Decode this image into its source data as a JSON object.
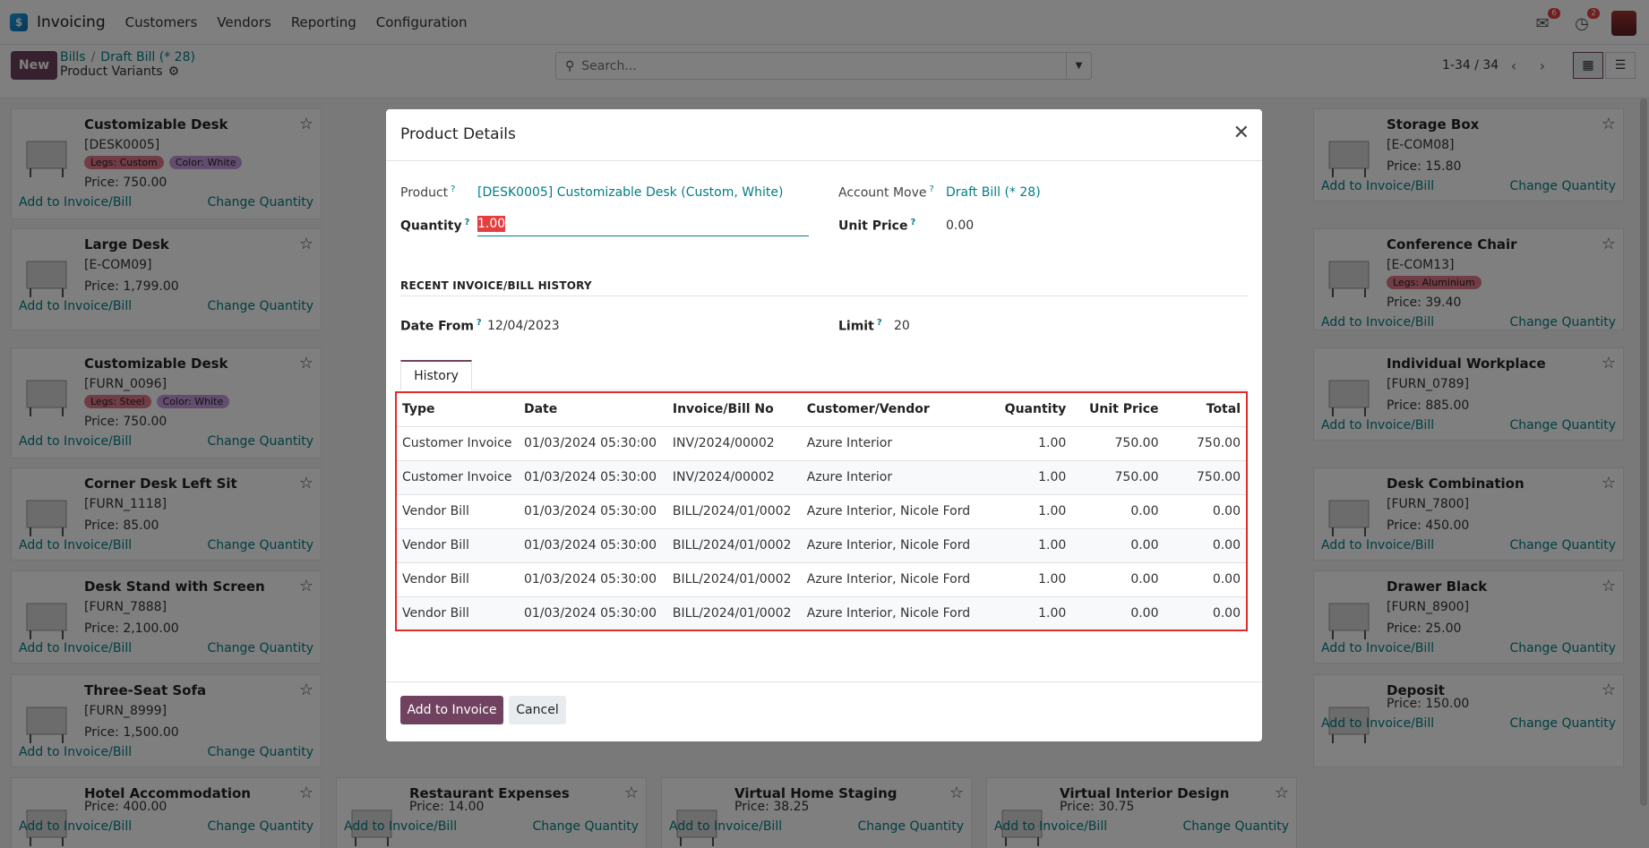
{
  "navbar": {
    "app_name": "Invoicing",
    "menu": [
      "Customers",
      "Vendors",
      "Reporting",
      "Configuration"
    ],
    "messages_count": "6",
    "activities_count": "2"
  },
  "control_panel": {
    "new_label": "New",
    "breadcrumb_bills": "Bills",
    "breadcrumb_sep": "/",
    "breadcrumb_draft": "Draft Bill (* 28)",
    "page_title": "Product Variants",
    "search_placeholder": "Search...",
    "pager": "1-34 / 34"
  },
  "kanban": {
    "add_label": "Add to Invoice/Bill",
    "change_label": "Change Quantity",
    "cards": [
      {
        "title": "Customizable Desk",
        "ref": "[DESK0005]",
        "tags": [
          "Legs: Custom",
          "Color: White"
        ],
        "price": "Price: 750.00"
      },
      {
        "title": "Large Desk",
        "ref": "[E-COM09]",
        "tags": [],
        "price": "Price: 1,799.00"
      },
      {
        "title": "Customizable Desk",
        "ref": "[FURN_0096]",
        "tags": [
          "Legs: Steel",
          "Color: White"
        ],
        "price": "Price: 750.00"
      },
      {
        "title": "Corner Desk Left Sit",
        "ref": "[FURN_1118]",
        "tags": [],
        "price": "Price: 85.00"
      },
      {
        "title": "Desk Stand with Screen",
        "ref": "[FURN_7888]",
        "tags": [],
        "price": "Price: 2,100.00"
      },
      {
        "title": "Three-Seat Sofa",
        "ref": "[FURN_8999]",
        "tags": [],
        "price": "Price: 1,500.00"
      },
      {
        "title": "Hotel Accommodation",
        "ref": "",
        "tags": [],
        "price": "Price: 400.00"
      },
      {
        "title": "Restaurant Expenses",
        "ref": "",
        "tags": [],
        "price": "Price: 14.00"
      },
      {
        "title": "Virtual Home Staging",
        "ref": "",
        "tags": [],
        "price": "Price: 38.25"
      },
      {
        "title": "Virtual Interior Design",
        "ref": "",
        "tags": [],
        "price": "Price: 30.75"
      },
      {
        "title": "Storage Box",
        "ref": "[E-COM08]",
        "tags": [],
        "price": "Price: 15.80"
      },
      {
        "title": "Conference Chair",
        "ref": "[E-COM13]",
        "tags": [
          "Legs: Aluminium"
        ],
        "price": "Price: 39.40"
      },
      {
        "title": "Individual Workplace",
        "ref": "[FURN_0789]",
        "tags": [],
        "price": "Price: 885.00"
      },
      {
        "title": "Desk Combination",
        "ref": "[FURN_7800]",
        "tags": [],
        "price": "Price: 450.00"
      },
      {
        "title": "Drawer Black",
        "ref": "[FURN_8900]",
        "tags": [],
        "price": "Price: 25.00"
      },
      {
        "title": "Deposit",
        "ref": "",
        "tags": [],
        "price": "Price: 150.00"
      }
    ]
  },
  "modal": {
    "title": "Product Details",
    "product_label": "Product",
    "product_value": "[DESK0005] Customizable Desk (Custom, White)",
    "account_move_label": "Account Move",
    "account_move_value": "Draft Bill (* 28)",
    "quantity_label": "Quantity",
    "quantity_value": "1.00",
    "unit_price_label": "Unit Price",
    "unit_price_value": "0.00",
    "section_title": "RECENT INVOICE/BILL HISTORY",
    "date_from_label": "Date From",
    "date_from_value": "12/04/2023",
    "limit_label": "Limit",
    "limit_value": "20",
    "tab_label": "History",
    "columns": [
      "Type",
      "Date",
      "Invoice/Bill No",
      "Customer/Vendor",
      "Quantity",
      "Unit Price",
      "Total"
    ],
    "rows": [
      [
        "Customer Invoice",
        "01/03/2024 05:30:00",
        "INV/2024/00002",
        "Azure Interior",
        "1.00",
        "750.00",
        "750.00"
      ],
      [
        "Customer Invoice",
        "01/03/2024 05:30:00",
        "INV/2024/00002",
        "Azure Interior",
        "1.00",
        "750.00",
        "750.00"
      ],
      [
        "Vendor Bill",
        "01/03/2024 05:30:00",
        "BILL/2024/01/0002",
        "Azure Interior, Nicole Ford",
        "1.00",
        "0.00",
        "0.00"
      ],
      [
        "Vendor Bill",
        "01/03/2024 05:30:00",
        "BILL/2024/01/0002",
        "Azure Interior, Nicole Ford",
        "1.00",
        "0.00",
        "0.00"
      ],
      [
        "Vendor Bill",
        "01/03/2024 05:30:00",
        "BILL/2024/01/0002",
        "Azure Interior, Nicole Ford",
        "1.00",
        "0.00",
        "0.00"
      ],
      [
        "Vendor Bill",
        "01/03/2024 05:30:00",
        "BILL/2024/01/0002",
        "Azure Interior, Nicole Ford",
        "1.00",
        "0.00",
        "0.00"
      ]
    ],
    "primary_button": "Add to Invoice",
    "cancel_button": "Cancel"
  },
  "colors": {
    "brand": "#71425f",
    "link": "#017e84",
    "highlight_border": "#e52a2a"
  }
}
